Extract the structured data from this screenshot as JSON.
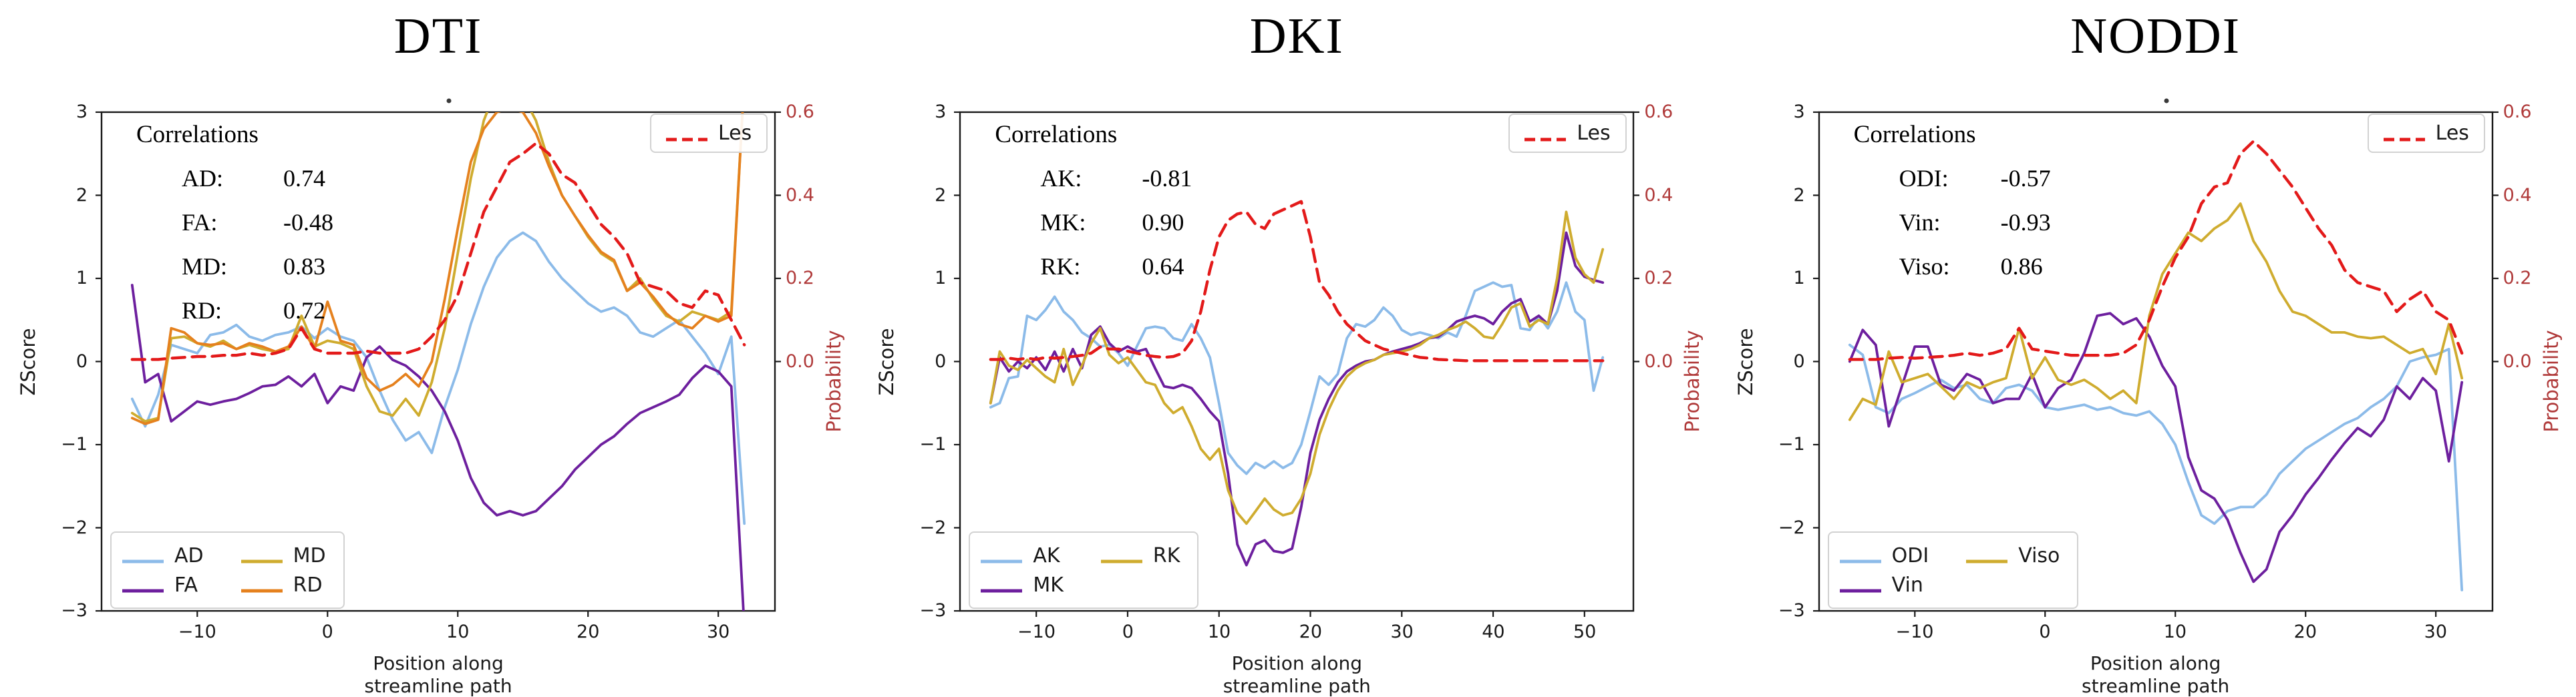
{
  "page": {
    "background": "#ffffff"
  },
  "styles": {
    "spine_color": "#1a1a1a",
    "right_axis_color": "#b03b3b",
    "les_red": "#e31a1a",
    "light_blue": "#8cbbe9",
    "purple": "#6d1f9e",
    "yellow": "#cfac2f",
    "orange": "#e5811e"
  },
  "chart_data": [
    {
      "type": "line",
      "title": "DTI",
      "has_title_dot": true,
      "xlabel": "Position along streamline path",
      "ylabel_left": "ZScore",
      "ylabel_right": "Probability",
      "ylim_left": [
        -3,
        3
      ],
      "ylim_right": [
        0,
        0.6
      ],
      "x_start": -15,
      "x_end": 32,
      "xlim": [
        -17.35,
        34.35
      ],
      "x_tick_values": [
        -10,
        0,
        10,
        20,
        30
      ],
      "x_tick_labels": [
        "−10",
        "0",
        "10",
        "20",
        "30"
      ],
      "y_tick_values_left": [
        3,
        2,
        1,
        0,
        -1,
        -2,
        -3
      ],
      "y_tick_labels_left": [
        "3",
        "2",
        "1",
        "0",
        "−1",
        "−2",
        "−3"
      ],
      "y_tick_values_right": [
        0.6,
        0.4,
        0.2,
        0.0
      ],
      "y_tick_labels_right": [
        "0.6",
        "0.4",
        "0.2",
        "0.0"
      ],
      "correlations": {
        "header": "Correlations",
        "rows": [
          {
            "label": "AD:",
            "value": "0.74"
          },
          {
            "label": "FA:",
            "value": "-0.48"
          },
          {
            "label": "MD:",
            "value": "0.83"
          },
          {
            "label": "RD:",
            "value": "0.72"
          }
        ]
      },
      "legend_les_label": "Les",
      "series": [
        {
          "name": "AD",
          "color": "#8cbbe9",
          "axis": "left",
          "dashed": false,
          "values": [
            -0.45,
            -0.78,
            -0.4,
            0.2,
            0.15,
            0.1,
            0.32,
            0.35,
            0.44,
            0.3,
            0.25,
            0.32,
            0.35,
            0.42,
            0.28,
            0.4,
            0.3,
            0.25,
            0.05,
            -0.35,
            -0.7,
            -0.95,
            -0.85,
            -1.1,
            -0.55,
            -0.1,
            0.45,
            0.9,
            1.25,
            1.45,
            1.55,
            1.45,
            1.2,
            1.0,
            0.85,
            0.7,
            0.6,
            0.65,
            0.55,
            0.35,
            0.3,
            0.4,
            0.5,
            0.3,
            0.1,
            -0.15,
            0.3,
            -1.95
          ]
        },
        {
          "name": "FA",
          "color": "#6d1f9e",
          "axis": "left",
          "dashed": false,
          "values": [
            0.92,
            -0.25,
            -0.15,
            -0.72,
            -0.6,
            -0.48,
            -0.52,
            -0.48,
            -0.45,
            -0.38,
            -0.3,
            -0.28,
            -0.18,
            -0.3,
            -0.15,
            -0.5,
            -0.3,
            -0.35,
            0.05,
            0.18,
            0.02,
            -0.05,
            -0.18,
            -0.35,
            -0.6,
            -0.95,
            -1.4,
            -1.7,
            -1.85,
            -1.8,
            -1.85,
            -1.8,
            -1.65,
            -1.5,
            -1.3,
            -1.15,
            -1.0,
            -0.9,
            -0.75,
            -0.62,
            -0.55,
            -0.48,
            -0.4,
            -0.2,
            -0.05,
            -0.12,
            -0.3,
            -3.2
          ]
        },
        {
          "name": "MD",
          "color": "#cfac2f",
          "axis": "left",
          "dashed": false,
          "values": [
            -0.62,
            -0.72,
            -0.68,
            0.28,
            0.3,
            0.22,
            0.18,
            0.25,
            0.15,
            0.2,
            0.15,
            0.12,
            0.15,
            0.55,
            0.18,
            0.25,
            0.22,
            0.15,
            -0.3,
            -0.6,
            -0.65,
            -0.45,
            -0.65,
            -0.25,
            0.4,
            1.3,
            2.2,
            2.9,
            3.3,
            3.4,
            3.2,
            2.9,
            2.4,
            2.0,
            1.75,
            1.5,
            1.3,
            1.2,
            0.85,
            1.0,
            0.75,
            0.55,
            0.48,
            0.6,
            0.55,
            0.5,
            0.6,
            3.4
          ]
        },
        {
          "name": "RD",
          "color": "#e5811e",
          "axis": "left",
          "dashed": false,
          "values": [
            -0.68,
            -0.75,
            -0.7,
            0.4,
            0.35,
            0.22,
            0.2,
            0.22,
            0.15,
            0.22,
            0.18,
            0.12,
            0.18,
            0.42,
            0.15,
            0.72,
            0.25,
            0.2,
            -0.2,
            -0.35,
            -0.28,
            -0.15,
            -0.3,
            0.0,
            0.75,
            1.6,
            2.4,
            2.8,
            3.0,
            3.05,
            3.0,
            2.75,
            2.35,
            2.0,
            1.75,
            1.52,
            1.32,
            1.22,
            0.85,
            0.95,
            0.78,
            0.58,
            0.45,
            0.4,
            0.55,
            0.48,
            0.55,
            3.4
          ]
        },
        {
          "name": "Les",
          "color": "#e31a1a",
          "axis": "right",
          "dashed": true,
          "values": [
            0.005,
            0.005,
            0.005,
            0.008,
            0.01,
            0.012,
            0.012,
            0.015,
            0.015,
            0.02,
            0.015,
            0.02,
            0.03,
            0.08,
            0.03,
            0.02,
            0.02,
            0.02,
            0.025,
            0.02,
            0.02,
            0.02,
            0.03,
            0.06,
            0.1,
            0.16,
            0.26,
            0.36,
            0.42,
            0.48,
            0.5,
            0.525,
            0.5,
            0.45,
            0.43,
            0.38,
            0.33,
            0.3,
            0.26,
            0.19,
            0.18,
            0.17,
            0.14,
            0.13,
            0.17,
            0.16,
            0.1,
            0.04
          ]
        }
      ]
    },
    {
      "type": "line",
      "title": "DKI",
      "has_title_dot": false,
      "xlabel": "Position along streamline path",
      "ylabel_left": "ZScore",
      "ylabel_right": "Probability",
      "ylim_left": [
        -3,
        3
      ],
      "ylim_right": [
        0,
        0.6
      ],
      "x_start": -15,
      "x_end": 52,
      "xlim": [
        -18.35,
        55.35
      ],
      "x_tick_values": [
        -10,
        0,
        10,
        20,
        30,
        40,
        50
      ],
      "x_tick_labels": [
        "−10",
        "0",
        "10",
        "20",
        "30",
        "40",
        "50"
      ],
      "y_tick_values_left": [
        3,
        2,
        1,
        0,
        -1,
        -2,
        -3
      ],
      "y_tick_labels_left": [
        "3",
        "2",
        "1",
        "0",
        "−1",
        "−2",
        "−3"
      ],
      "y_tick_values_right": [
        0.6,
        0.4,
        0.2,
        0.0
      ],
      "y_tick_labels_right": [
        "0.6",
        "0.4",
        "0.2",
        "0.0"
      ],
      "correlations": {
        "header": "Correlations",
        "rows": [
          {
            "label": "AK:",
            "value": "-0.81"
          },
          {
            "label": "MK:",
            "value": "0.90"
          },
          {
            "label": "RK:",
            "value": "0.64"
          }
        ]
      },
      "legend_les_label": "Les",
      "series": [
        {
          "name": "AK",
          "color": "#8cbbe9",
          "axis": "left",
          "dashed": false,
          "values": [
            -0.55,
            -0.5,
            -0.2,
            -0.18,
            0.55,
            0.5,
            0.62,
            0.78,
            0.6,
            0.5,
            0.35,
            0.28,
            0.18,
            0.2,
            0.1,
            -0.05,
            0.18,
            0.4,
            0.42,
            0.4,
            0.28,
            0.25,
            0.45,
            0.28,
            0.05,
            -0.5,
            -1.1,
            -1.25,
            -1.35,
            -1.22,
            -1.28,
            -1.2,
            -1.28,
            -1.22,
            -1.0,
            -0.6,
            -0.18,
            -0.28,
            -0.15,
            0.28,
            0.45,
            0.42,
            0.5,
            0.65,
            0.55,
            0.38,
            0.32,
            0.35,
            0.32,
            0.28,
            0.35,
            0.3,
            0.55,
            0.85,
            0.9,
            0.95,
            0.9,
            0.92,
            0.4,
            0.38,
            0.55,
            0.4,
            0.6,
            0.95,
            0.6,
            0.5,
            -0.35,
            0.05
          ]
        },
        {
          "name": "MK",
          "color": "#6d1f9e",
          "axis": "left",
          "dashed": false,
          "values": [
            -0.5,
            0.05,
            -0.12,
            0.0,
            -0.08,
            0.05,
            -0.1,
            0.12,
            -0.12,
            0.15,
            -0.08,
            0.32,
            0.42,
            0.22,
            0.12,
            0.18,
            0.12,
            0.15,
            -0.08,
            -0.3,
            -0.32,
            -0.28,
            -0.32,
            -0.45,
            -0.6,
            -0.72,
            -1.35,
            -2.2,
            -2.45,
            -2.2,
            -2.15,
            -2.28,
            -2.3,
            -2.25,
            -1.75,
            -1.1,
            -0.7,
            -0.45,
            -0.25,
            -0.12,
            -0.05,
            0.0,
            0.02,
            0.08,
            0.12,
            0.15,
            0.18,
            0.22,
            0.28,
            0.3,
            0.38,
            0.48,
            0.52,
            0.55,
            0.52,
            0.45,
            0.6,
            0.7,
            0.75,
            0.48,
            0.55,
            0.45,
            0.85,
            1.55,
            1.15,
            1.02,
            0.98,
            0.95
          ]
        },
        {
          "name": "RK",
          "color": "#cfac2f",
          "axis": "left",
          "dashed": false,
          "values": [
            -0.5,
            0.12,
            -0.05,
            -0.1,
            0.02,
            -0.08,
            -0.18,
            -0.25,
            0.15,
            -0.28,
            -0.05,
            0.22,
            0.4,
            0.08,
            -0.02,
            0.05,
            -0.1,
            -0.25,
            -0.28,
            -0.5,
            -0.62,
            -0.55,
            -0.78,
            -1.05,
            -1.18,
            -1.05,
            -1.55,
            -1.82,
            -1.95,
            -1.8,
            -1.65,
            -1.78,
            -1.85,
            -1.82,
            -1.65,
            -1.35,
            -0.88,
            -0.58,
            -0.35,
            -0.18,
            -0.08,
            -0.02,
            0.02,
            0.08,
            0.1,
            0.12,
            0.15,
            0.2,
            0.28,
            0.32,
            0.38,
            0.42,
            0.48,
            0.4,
            0.3,
            0.28,
            0.45,
            0.65,
            0.7,
            0.42,
            0.5,
            0.45,
            1.0,
            1.8,
            1.25,
            1.05,
            0.95,
            1.35
          ]
        },
        {
          "name": "Les",
          "color": "#e31a1a",
          "axis": "right",
          "dashed": true,
          "values": [
            0.005,
            0.005,
            0.008,
            0.005,
            0.008,
            0.005,
            0.01,
            0.008,
            0.01,
            0.012,
            0.015,
            0.02,
            0.035,
            0.03,
            0.03,
            0.025,
            0.02,
            0.015,
            0.012,
            0.01,
            0.012,
            0.02,
            0.05,
            0.12,
            0.22,
            0.3,
            0.34,
            0.355,
            0.36,
            0.33,
            0.32,
            0.355,
            0.365,
            0.375,
            0.385,
            0.3,
            0.19,
            0.16,
            0.12,
            0.09,
            0.07,
            0.05,
            0.04,
            0.03,
            0.025,
            0.02,
            0.015,
            0.01,
            0.008,
            0.005,
            0.004,
            0.003,
            0.002,
            0.002,
            0.002,
            0.002,
            0.002,
            0.002,
            0.002,
            0.002,
            0.002,
            0.002,
            0.002,
            0.002,
            0.002,
            0.002,
            0.002,
            0.002
          ]
        }
      ]
    },
    {
      "type": "line",
      "title": "NODDI",
      "has_title_dot": true,
      "xlabel": "Position along streamline path",
      "ylabel_left": "ZScore",
      "ylabel_right": "Probability",
      "ylim_left": [
        -3,
        3
      ],
      "ylim_right": [
        0,
        0.6
      ],
      "x_start": -15,
      "x_end": 32,
      "xlim": [
        -17.35,
        34.35
      ],
      "x_tick_values": [
        -10,
        0,
        10,
        20,
        30
      ],
      "x_tick_labels": [
        "−10",
        "0",
        "10",
        "20",
        "30"
      ],
      "y_tick_values_left": [
        3,
        2,
        1,
        0,
        -1,
        -2,
        -3
      ],
      "y_tick_labels_left": [
        "3",
        "2",
        "1",
        "0",
        "−1",
        "−2",
        "−3"
      ],
      "y_tick_values_right": [
        0.6,
        0.4,
        0.2,
        0.0
      ],
      "y_tick_labels_right": [
        "0.6",
        "0.4",
        "0.2",
        "0.0"
      ],
      "correlations": {
        "header": "Correlations",
        "rows": [
          {
            "label": "ODI:",
            "value": "-0.57"
          },
          {
            "label": "Vin:",
            "value": "-0.93"
          },
          {
            "label": "Viso:",
            "value": "0.86"
          }
        ]
      },
      "legend_les_label": "Les",
      "series": [
        {
          "name": "ODI",
          "color": "#8cbbe9",
          "axis": "left",
          "dashed": false,
          "values": [
            0.2,
            0.08,
            -0.55,
            -0.62,
            -0.45,
            -0.38,
            -0.3,
            -0.22,
            -0.32,
            -0.28,
            -0.45,
            -0.5,
            -0.32,
            -0.28,
            -0.35,
            -0.55,
            -0.58,
            -0.55,
            -0.52,
            -0.58,
            -0.55,
            -0.62,
            -0.65,
            -0.6,
            -0.75,
            -1.0,
            -1.45,
            -1.85,
            -1.95,
            -1.8,
            -1.75,
            -1.75,
            -1.6,
            -1.35,
            -1.2,
            -1.05,
            -0.95,
            -0.85,
            -0.75,
            -0.68,
            -0.55,
            -0.45,
            -0.3,
            0.0,
            0.05,
            0.08,
            0.15,
            -2.75
          ]
        },
        {
          "name": "Vin",
          "color": "#6d1f9e",
          "axis": "left",
          "dashed": false,
          "values": [
            0.0,
            0.38,
            0.2,
            -0.78,
            -0.3,
            0.18,
            0.18,
            -0.28,
            -0.35,
            -0.15,
            -0.22,
            -0.5,
            -0.45,
            -0.45,
            -0.15,
            -0.55,
            -0.32,
            -0.22,
            0.1,
            0.55,
            0.58,
            0.45,
            0.52,
            0.3,
            -0.05,
            -0.3,
            -1.15,
            -1.55,
            -1.65,
            -1.9,
            -2.3,
            -2.65,
            -2.5,
            -2.05,
            -1.85,
            -1.6,
            -1.4,
            -1.18,
            -0.98,
            -0.8,
            -0.9,
            -0.7,
            -0.3,
            -0.45,
            -0.2,
            -0.35,
            -1.2,
            -0.25
          ]
        },
        {
          "name": "Viso",
          "color": "#cfac2f",
          "axis": "left",
          "dashed": false,
          "values": [
            -0.7,
            -0.45,
            -0.52,
            0.12,
            -0.25,
            -0.2,
            -0.15,
            -0.3,
            -0.45,
            -0.25,
            -0.32,
            -0.25,
            -0.2,
            0.4,
            -0.2,
            0.05,
            -0.22,
            -0.28,
            -0.22,
            -0.32,
            -0.45,
            -0.35,
            -0.5,
            0.55,
            1.05,
            1.3,
            1.55,
            1.45,
            1.6,
            1.7,
            1.9,
            1.45,
            1.2,
            0.85,
            0.6,
            0.55,
            0.45,
            0.35,
            0.35,
            0.3,
            0.28,
            0.3,
            0.2,
            0.1,
            0.15,
            -0.15,
            0.45,
            -0.2
          ]
        },
        {
          "name": "Les",
          "color": "#e31a1a",
          "axis": "right",
          "dashed": true,
          "values": [
            0.005,
            0.005,
            0.005,
            0.008,
            0.01,
            0.008,
            0.01,
            0.012,
            0.015,
            0.02,
            0.015,
            0.02,
            0.03,
            0.08,
            0.03,
            0.025,
            0.02,
            0.015,
            0.015,
            0.015,
            0.015,
            0.02,
            0.04,
            0.1,
            0.18,
            0.25,
            0.3,
            0.38,
            0.42,
            0.43,
            0.5,
            0.53,
            0.5,
            0.46,
            0.42,
            0.37,
            0.32,
            0.28,
            0.22,
            0.19,
            0.18,
            0.17,
            0.12,
            0.15,
            0.17,
            0.12,
            0.1,
            0.02
          ]
        }
      ]
    }
  ]
}
